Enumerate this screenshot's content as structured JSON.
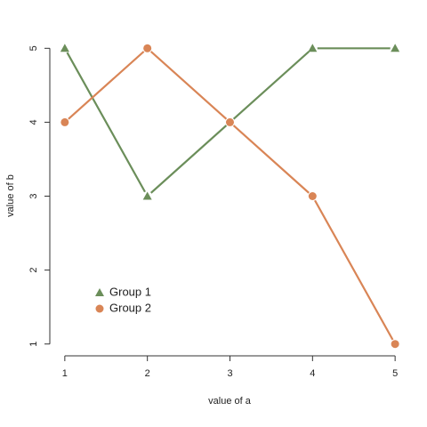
{
  "chart_data": {
    "type": "line",
    "x_label": "value of a",
    "y_label": "value of b",
    "x": [
      1,
      2,
      3,
      4,
      5
    ],
    "series": [
      {
        "name": "Group 1",
        "color": "#6b8e5a",
        "marker": "triangle",
        "values": [
          5,
          3,
          4,
          5,
          5
        ]
      },
      {
        "name": "Group 2",
        "color": "#d98556",
        "marker": "circle",
        "values": [
          4,
          5,
          4,
          3,
          1
        ]
      }
    ],
    "xlim": [
      0.84,
      5.16
    ],
    "ylim": [
      0.84,
      5.16
    ],
    "xticks": [
      1,
      2,
      3,
      4,
      5
    ],
    "yticks": [
      1,
      2,
      3,
      4,
      5
    ],
    "legend": "bottom-left"
  }
}
